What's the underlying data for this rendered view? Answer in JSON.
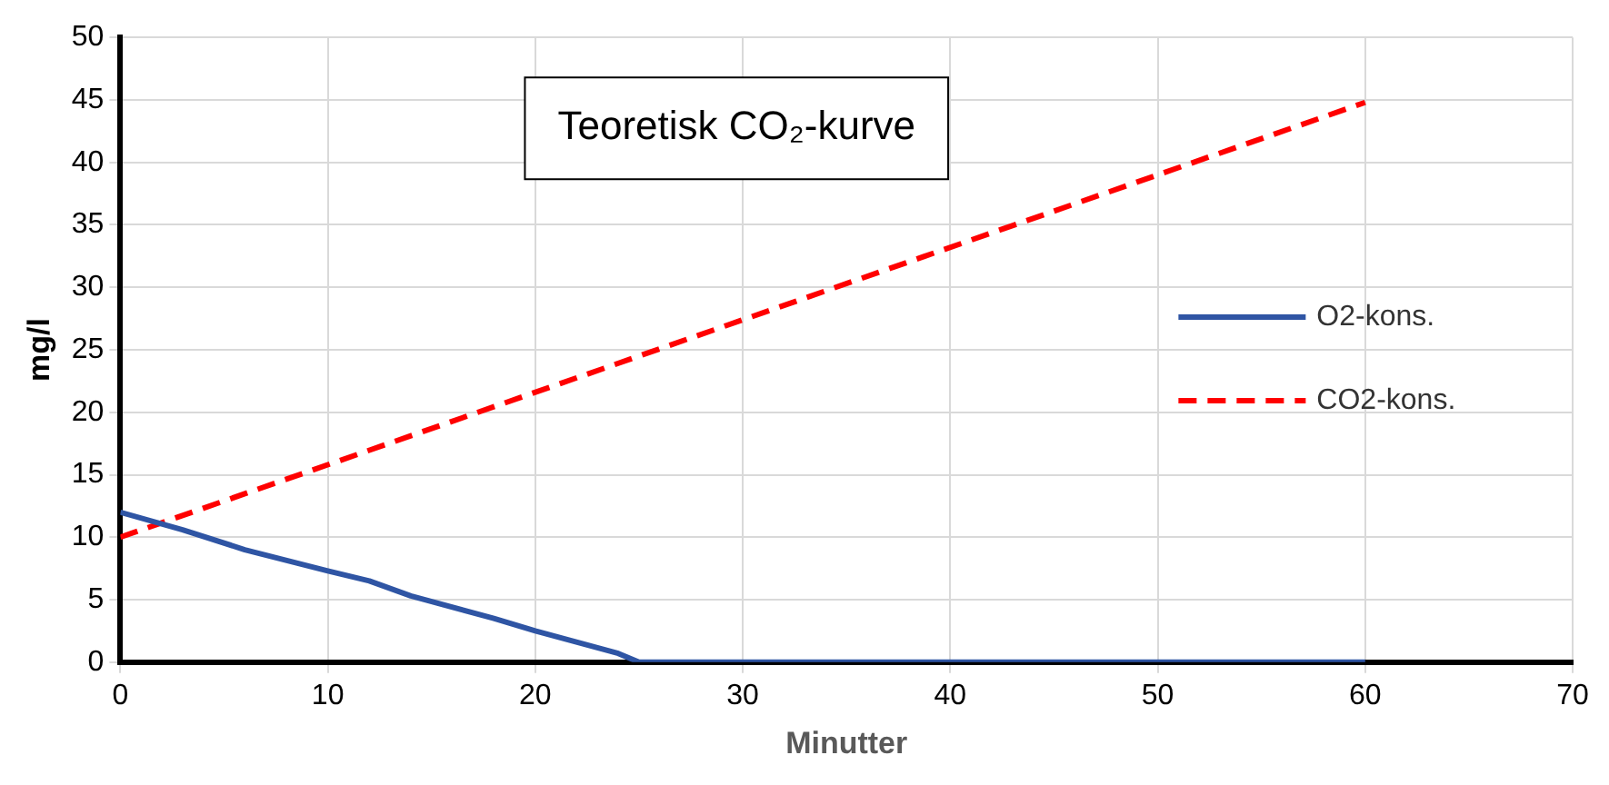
{
  "chart_data": {
    "type": "line",
    "title": "Teoretisk CO₂-kurve",
    "xlabel": "Minutter",
    "ylabel": "mg/l",
    "xlim": [
      0,
      70
    ],
    "xticks": [
      0,
      10,
      20,
      30,
      40,
      50,
      60,
      70
    ],
    "ylim": [
      0,
      50
    ],
    "yticks": [
      0,
      5,
      10,
      15,
      20,
      25,
      30,
      35,
      40,
      45,
      50
    ],
    "grid": true,
    "legend": "right",
    "marker": "none",
    "series": [
      {
        "name": "O2-kons.",
        "color": "#2f55a4",
        "line_style": "solid",
        "x": [
          0,
          3,
          6,
          10,
          12,
          14,
          18,
          20,
          24,
          25,
          60
        ],
        "values": [
          12,
          10.6,
          9,
          7.3,
          6.5,
          5.3,
          3.5,
          2.5,
          0.7,
          0,
          0
        ]
      },
      {
        "name": "CO2-kons.",
        "color": "#ff0000",
        "line_style": "dashed",
        "x": [
          0,
          60
        ],
        "values": [
          10,
          44.8
        ]
      }
    ]
  }
}
